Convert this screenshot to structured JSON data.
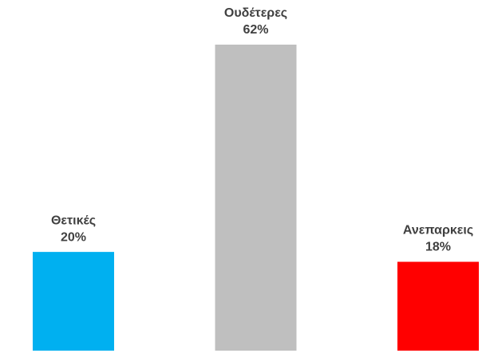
{
  "chart_data": {
    "type": "bar",
    "categories": [
      "Θετικές",
      "Ουδέτερες",
      "Ανεπαρκεις"
    ],
    "values": [
      20,
      62,
      18
    ],
    "value_labels": [
      "20%",
      "62%",
      "18%"
    ],
    "colors": [
      "#00b0f0",
      "#bfbfbf",
      "#ff0000"
    ]
  }
}
